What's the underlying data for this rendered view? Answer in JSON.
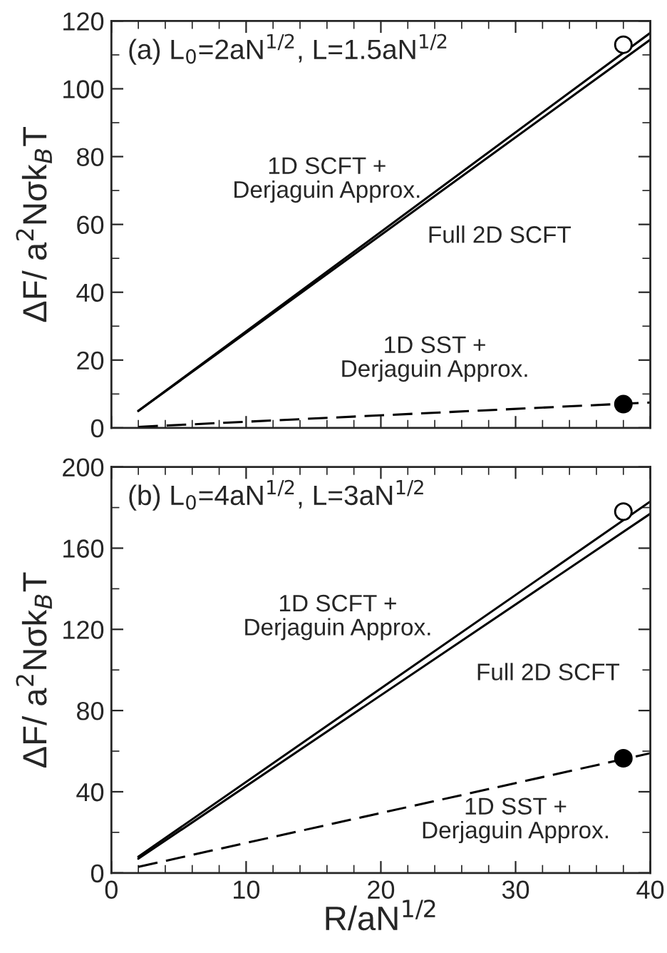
{
  "chart_data": [
    {
      "type": "line",
      "ylabel": "ΔF/ a$^{2}$Nσk$_{B}$T",
      "xlim": [
        0,
        40
      ],
      "xticks": [
        0,
        10,
        20,
        30,
        40
      ],
      "ylim": [
        0,
        120
      ],
      "yticks": [
        0,
        20,
        40,
        60,
        80,
        100,
        120
      ],
      "tick_labels": "y",
      "grid": false,
      "series": [
        {
          "color": "#000000",
          "line_style": "solid",
          "x": [
            2,
            40
          ],
          "values": [
            5,
            116.5
          ]
        },
        {
          "color": "#000000",
          "line_style": "solid",
          "x": [
            2,
            40
          ],
          "values": [
            5,
            114.5
          ]
        },
        {
          "color": "#000000",
          "line_style": "dashed",
          "x": [
            2,
            40
          ],
          "values": [
            0.3,
            7.5
          ]
        },
        {
          "type": "scatter",
          "color": "#ffffff",
          "marker": "circle",
          "x": [
            38
          ],
          "values": [
            113
          ]
        },
        {
          "type": "scatter",
          "color": "#000000",
          "marker": "circle",
          "x": [
            38
          ],
          "values": [
            7
          ]
        }
      ],
      "annotations": [
        "(a) L$_{0}$=2aN$^{1/2}$, L=1.5aN$^{1/2}$",
        "1D SCFT +\nDerjaguin Approx.",
        "Full 2D SCFT",
        "1D SST +\nDerjaguin Approx."
      ]
    },
    {
      "type": "line",
      "xlabel": "R/aN$^{1/2}$",
      "ylabel": "ΔF/ a$^{2}$Nσk$_{B}$T",
      "xlim": [
        0,
        40
      ],
      "xticks": [
        0,
        10,
        20,
        30,
        40
      ],
      "ylim": [
        0,
        200
      ],
      "yticks": [
        0,
        40,
        80,
        120,
        160,
        200
      ],
      "grid": false,
      "series": [
        {
          "color": "#000000",
          "line_style": "solid",
          "x": [
            2,
            40
          ],
          "values": [
            8,
            183
          ]
        },
        {
          "color": "#000000",
          "line_style": "solid",
          "x": [
            2,
            40
          ],
          "values": [
            7,
            177
          ]
        },
        {
          "color": "#000000",
          "line_style": "dashed",
          "x": [
            2,
            40
          ],
          "values": [
            3,
            59
          ]
        },
        {
          "type": "scatter",
          "color": "#ffffff",
          "marker": "circle",
          "x": [
            38
          ],
          "values": [
            178
          ]
        },
        {
          "type": "scatter",
          "color": "#000000",
          "marker": "circle",
          "x": [
            38
          ],
          "values": [
            56.5
          ]
        }
      ],
      "annotations": [
        "(b) L$_{0}$=4aN$^{1/2}$, L=3aN$^{1/2}$",
        "1D SCFT +\nDerjaguin Approx.",
        "Full 2D SCFT",
        "1D SST +\nDerjaguin Approx."
      ]
    }
  ]
}
